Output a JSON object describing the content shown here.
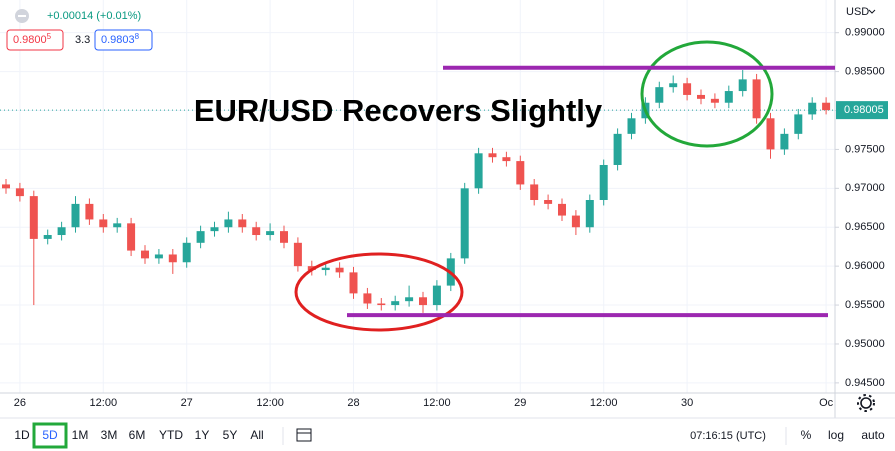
{
  "header": {
    "change": "+0.00014 (+0.01%)",
    "bid": {
      "main": "0.9800",
      "pip": "5"
    },
    "spread": "3.3",
    "ask": {
      "main": "0.9803",
      "pip": "8"
    }
  },
  "chart_data": {
    "type": "candlestick",
    "title": "EUR/USD Recovers Slightly",
    "currency": "USD",
    "categories": [
      null,
      "26",
      null,
      null,
      null,
      null,
      null,
      "12:00",
      null,
      null,
      null,
      null,
      null,
      "27",
      null,
      null,
      null,
      null,
      null,
      "12:00",
      null,
      null,
      null,
      null,
      null,
      "28",
      null,
      null,
      null,
      null,
      null,
      "12:00",
      null,
      null,
      null,
      null,
      null,
      "29",
      null,
      null,
      null,
      null,
      null,
      "12:00",
      null,
      null,
      null,
      null,
      null,
      "30",
      null,
      null,
      null,
      null,
      null,
      null,
      null,
      null,
      null,
      "Oc"
    ],
    "open": [
      0.9705,
      0.97,
      0.969,
      0.9635,
      0.964,
      0.965,
      0.968,
      0.966,
      0.965,
      0.9655,
      0.962,
      0.961,
      0.9615,
      0.9605,
      0.963,
      0.9645,
      0.965,
      0.966,
      0.965,
      0.964,
      0.9645,
      0.963,
      0.96,
      0.9595,
      0.9598,
      0.9592,
      0.9565,
      0.9552,
      0.955,
      0.9555,
      0.956,
      0.955,
      0.9575,
      0.961,
      0.97,
      0.9745,
      0.974,
      0.9735,
      0.9705,
      0.9685,
      0.968,
      0.9665,
      0.965,
      0.9685,
      0.973,
      0.977,
      0.979,
      0.981,
      0.983,
      0.9835,
      0.982,
      0.9815,
      0.981,
      0.9825,
      0.984,
      0.979,
      0.975,
      0.977,
      0.9795,
      0.981
    ],
    "high": [
      0.9712,
      0.9707,
      0.9697,
      0.9647,
      0.9657,
      0.969,
      0.9687,
      0.9667,
      0.9662,
      0.9662,
      0.9627,
      0.9622,
      0.9622,
      0.9637,
      0.9652,
      0.9657,
      0.967,
      0.9667,
      0.9657,
      0.9655,
      0.9652,
      0.9637,
      0.9607,
      0.9605,
      0.9605,
      0.9599,
      0.9572,
      0.9559,
      0.9562,
      0.9575,
      0.9567,
      0.9582,
      0.9617,
      0.9707,
      0.9752,
      0.9752,
      0.9747,
      0.9742,
      0.9712,
      0.9692,
      0.9687,
      0.9672,
      0.9692,
      0.9737,
      0.9777,
      0.9797,
      0.9817,
      0.9837,
      0.9845,
      0.9842,
      0.9827,
      0.9822,
      0.9832,
      0.9852,
      0.9847,
      0.9797,
      0.9777,
      0.9802,
      0.9817,
      0.9817
    ],
    "low": [
      0.9693,
      0.9683,
      0.955,
      0.9628,
      0.9633,
      0.9643,
      0.9653,
      0.9643,
      0.9643,
      0.9613,
      0.9603,
      0.9603,
      0.959,
      0.9598,
      0.9623,
      0.9638,
      0.9643,
      0.9643,
      0.9633,
      0.9633,
      0.9623,
      0.9593,
      0.9588,
      0.9588,
      0.9585,
      0.9558,
      0.9545,
      0.9543,
      0.9543,
      0.9548,
      0.954,
      0.9543,
      0.9568,
      0.9603,
      0.9693,
      0.9733,
      0.9728,
      0.9698,
      0.9678,
      0.9673,
      0.9658,
      0.964,
      0.9643,
      0.9678,
      0.9723,
      0.9763,
      0.9783,
      0.9803,
      0.9823,
      0.9813,
      0.9808,
      0.9803,
      0.9803,
      0.9818,
      0.9783,
      0.9738,
      0.9743,
      0.9763,
      0.9788,
      0.9795
    ],
    "close": [
      0.97,
      0.969,
      0.9635,
      0.964,
      0.965,
      0.968,
      0.966,
      0.965,
      0.9655,
      0.962,
      0.961,
      0.9615,
      0.9605,
      0.963,
      0.9645,
      0.965,
      0.966,
      0.965,
      0.964,
      0.9645,
      0.963,
      0.96,
      0.9595,
      0.9598,
      0.9592,
      0.9565,
      0.9552,
      0.955,
      0.9555,
      0.956,
      0.955,
      0.9575,
      0.961,
      0.97,
      0.9745,
      0.974,
      0.9735,
      0.9705,
      0.9685,
      0.968,
      0.9665,
      0.965,
      0.9685,
      0.973,
      0.977,
      0.979,
      0.981,
      0.983,
      0.9835,
      0.982,
      0.9815,
      0.981,
      0.9825,
      0.984,
      0.979,
      0.975,
      0.977,
      0.9795,
      0.981,
      0.98005
    ],
    "up_color": "#26a69a",
    "down_color": "#ef5350",
    "ylim": [
      0.9437,
      0.9942
    ],
    "yticks": [
      {
        "value": 0.99,
        "label": "0.99000"
      },
      {
        "value": 0.985,
        "label": "0.98500"
      },
      {
        "value": 0.98,
        "label": "0.98000"
      },
      {
        "value": 0.975,
        "label": "0.97500"
      },
      {
        "value": 0.97,
        "label": "0.97000"
      },
      {
        "value": 0.965,
        "label": "0.96500"
      },
      {
        "value": 0.96,
        "label": "0.96000"
      },
      {
        "value": 0.955,
        "label": "0.95500"
      },
      {
        "value": 0.95,
        "label": "0.95000"
      },
      {
        "value": 0.945,
        "label": "0.94500"
      }
    ],
    "grid": true,
    "last_price": {
      "value": 0.98005,
      "label": "0.98005",
      "color": "#26a69a"
    },
    "levels": [
      {
        "value": 0.9855,
        "color": "#9c27b0"
      },
      {
        "value": 0.9537,
        "color": "#9c27b0"
      }
    ]
  },
  "toolbar": {
    "ranges": [
      "1D",
      "5D",
      "1M",
      "3M",
      "6M",
      "YTD",
      "1Y",
      "5Y",
      "All"
    ],
    "active": 1,
    "clock": "07:16:15 (UTC)",
    "options": [
      "%",
      "log",
      "auto"
    ]
  }
}
